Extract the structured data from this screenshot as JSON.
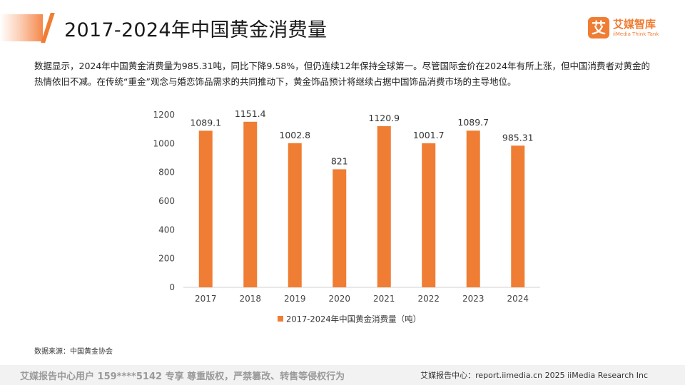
{
  "header": {
    "title": "2017-2024年中国黄金消费量"
  },
  "brand": {
    "logo_char": "艾",
    "name": "艾媒智库",
    "sub": "iiMedia Think Tank",
    "color": "#ef7d33"
  },
  "description": "数据显示，2024年中国黄金消费量为985.31吨，同比下降9.58%，但仍连续12年保持全球第一。尽管国际金价在2024年有所上涨，但中国消费者对黄金的热情依旧不减。在传统“重金”观念与婚恋饰品需求的共同推动下，黄金饰品预计将继续占据中国饰品消费市场的主导地位。",
  "chart_data": {
    "type": "bar",
    "categories": [
      "2017",
      "2018",
      "2019",
      "2020",
      "2021",
      "2022",
      "2023",
      "2024"
    ],
    "series": [
      {
        "name": "2017-2024年中国黄金消费量（吨）",
        "values": [
          1089.1,
          1151.4,
          1002.8,
          821,
          1120.9,
          1001.7,
          1089.7,
          985.31
        ],
        "labels": [
          "1089.1",
          "1151.4",
          "1002.8",
          "821",
          "1120.9",
          "1001.7",
          "1089.7",
          "985.31"
        ],
        "color": "#ef7d33"
      }
    ],
    "yticks": [
      "0",
      "200",
      "400",
      "600",
      "800",
      "1000",
      "1200"
    ],
    "ylim": [
      0,
      1200
    ],
    "grid": false,
    "legend_position": "bottom-center",
    "xlabel": "",
    "ylabel": ""
  },
  "source": "数据来源：中国黄金协会",
  "footer": {
    "left": "艾媒报告中心用户 159****5142 专享 尊重版权，严禁篡改、转售等侵权行为",
    "right": "艾媒报告中心：report.iimedia.cn  2025 iiMedia Research Inc"
  }
}
